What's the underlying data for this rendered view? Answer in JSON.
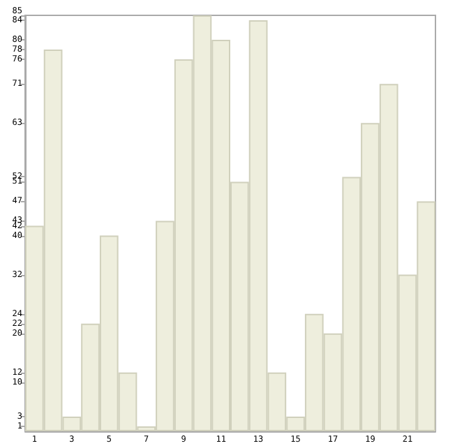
{
  "chart_data": {
    "type": "bar",
    "categories": [
      "1",
      null,
      "3",
      null,
      "5",
      null,
      "7",
      null,
      "9",
      null,
      "11",
      null,
      "13",
      null,
      "15",
      null,
      "17",
      null,
      "19",
      null,
      "21",
      null
    ],
    "values": [
      42,
      78,
      3,
      22,
      40,
      12,
      1,
      43,
      76,
      85,
      80,
      51,
      84,
      12,
      3,
      24,
      20,
      52,
      63,
      71,
      32,
      47
    ],
    "color": "#eeeedd",
    "ylim": [
      0,
      85
    ],
    "yticks": [
      1,
      3,
      10,
      12,
      20,
      22,
      24,
      32,
      40,
      42,
      43,
      47,
      51,
      52,
      63,
      71,
      76,
      78,
      80,
      84,
      85
    ],
    "grid": false
  }
}
